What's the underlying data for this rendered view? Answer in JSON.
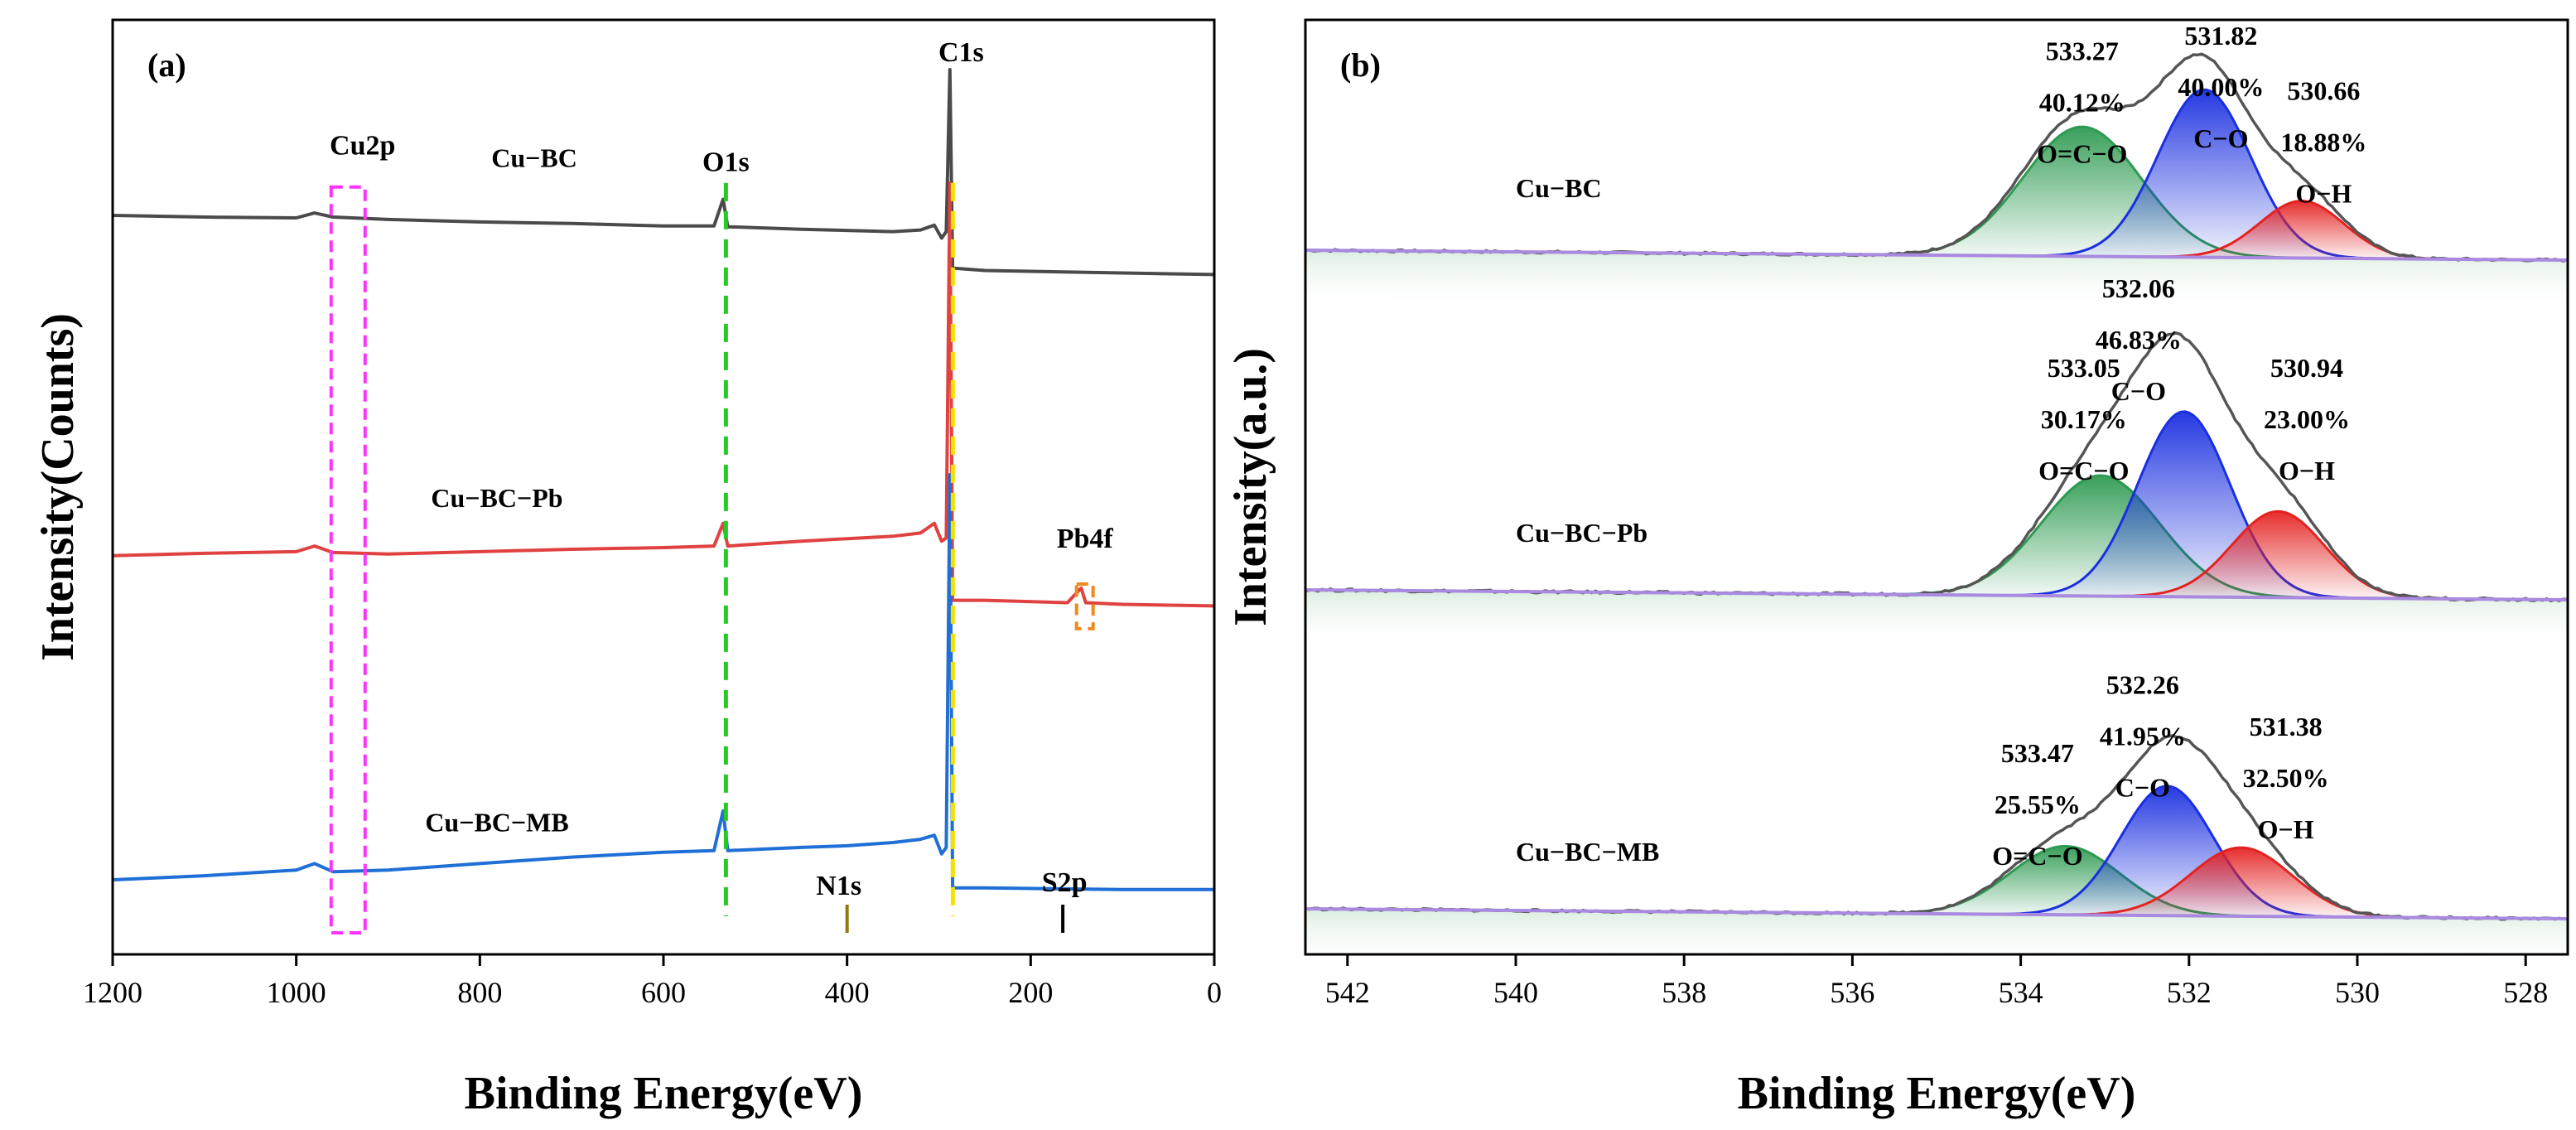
{
  "chart_data": [
    {
      "panel": "(a)",
      "type": "line",
      "xlabel": "Binding Energy(eV)",
      "ylabel": "Intensity(Counts)",
      "xlim": [
        1200,
        0
      ],
      "x_reversed": true,
      "xticks": [
        1200,
        1000,
        800,
        600,
        400,
        200,
        0
      ],
      "yticks_shown": false,
      "series": [
        {
          "name": "Cu-BC",
          "label": "Cu−BC",
          "color": "#4a4a4a",
          "offset": 0.82,
          "points": [
            [
              1200,
              0.0
            ],
            [
              1100,
              -0.002
            ],
            [
              1000,
              -0.003
            ],
            [
              980,
              0.003
            ],
            [
              960,
              -0.002
            ],
            [
              900,
              -0.005
            ],
            [
              800,
              -0.008
            ],
            [
              700,
              -0.01
            ],
            [
              600,
              -0.013
            ],
            [
              545,
              -0.013
            ],
            [
              535,
              0.02
            ],
            [
              530,
              -0.014
            ],
            [
              450,
              -0.017
            ],
            [
              350,
              -0.02
            ],
            [
              320,
              -0.018
            ],
            [
              305,
              -0.012
            ],
            [
              297,
              -0.028
            ],
            [
              292,
              -0.02
            ],
            [
              288,
              0.18
            ],
            [
              285,
              -0.065
            ],
            [
              250,
              -0.068
            ],
            [
              100,
              -0.071
            ],
            [
              0,
              -0.073
            ]
          ]
        },
        {
          "name": "Cu-BC-Pb",
          "label": "Cu−BC−Pb",
          "color": "#e04141",
          "offset": 0.4,
          "points": [
            [
              1200,
              0.0
            ],
            [
              1100,
              0.003
            ],
            [
              1000,
              0.005
            ],
            [
              980,
              0.012
            ],
            [
              960,
              0.004
            ],
            [
              900,
              0.002
            ],
            [
              800,
              0.005
            ],
            [
              700,
              0.008
            ],
            [
              600,
              0.01
            ],
            [
              545,
              0.012
            ],
            [
              535,
              0.04
            ],
            [
              530,
              0.012
            ],
            [
              450,
              0.018
            ],
            [
              350,
              0.024
            ],
            [
              320,
              0.028
            ],
            [
              305,
              0.04
            ],
            [
              297,
              0.018
            ],
            [
              292,
              0.022
            ],
            [
              288,
              0.46
            ],
            [
              285,
              -0.055
            ],
            [
              250,
              -0.055
            ],
            [
              160,
              -0.058
            ],
            [
              145,
              -0.04
            ],
            [
              140,
              -0.058
            ],
            [
              100,
              -0.06
            ],
            [
              0,
              -0.062
            ]
          ]
        },
        {
          "name": "Cu-BC-MB",
          "label": "Cu−BC−MB",
          "color": "#1f6fd6",
          "offset": 0.0,
          "points": [
            [
              1200,
              0.0
            ],
            [
              1100,
              0.005
            ],
            [
              1000,
              0.012
            ],
            [
              980,
              0.02
            ],
            [
              960,
              0.01
            ],
            [
              900,
              0.012
            ],
            [
              800,
              0.02
            ],
            [
              700,
              0.028
            ],
            [
              600,
              0.034
            ],
            [
              545,
              0.036
            ],
            [
              535,
              0.085
            ],
            [
              530,
              0.036
            ],
            [
              450,
              0.04
            ],
            [
              400,
              0.042
            ],
            [
              350,
              0.046
            ],
            [
              320,
              0.05
            ],
            [
              305,
              0.055
            ],
            [
              297,
              0.032
            ],
            [
              292,
              0.04
            ],
            [
              288,
              0.5
            ],
            [
              285,
              -0.01
            ],
            [
              250,
              -0.01
            ],
            [
              100,
              -0.012
            ],
            [
              0,
              -0.012
            ]
          ]
        }
      ],
      "reference_lines": [
        {
          "name": "O1s",
          "x": 532,
          "color": "#22cc22"
        },
        {
          "name": "C1s",
          "x": 284.8,
          "color": "#f2e200"
        }
      ],
      "markers": [
        {
          "name": "N1s",
          "x": 400,
          "color": "#8a7a10"
        },
        {
          "name": "S2p",
          "x": 165,
          "color": "#000000"
        }
      ],
      "boxes": [
        {
          "name": "Cu2p",
          "x_range": [
            962,
            925
          ],
          "color": "#ff33ff"
        },
        {
          "name": "Pb4f",
          "x_range": [
            150,
            132
          ],
          "color": "#f08a1c"
        }
      ],
      "peak_labels": [
        "Cu2p",
        "O1s",
        "C1s",
        "N1s",
        "Pb4f",
        "S2p"
      ]
    },
    {
      "panel": "(b)",
      "type": "area",
      "xlabel": "Binding Energy(eV)",
      "ylabel": "Intensity(a.u.)",
      "xlim": [
        542.5,
        527.5
      ],
      "x_reversed": true,
      "xticks": [
        542,
        540,
        538,
        536,
        534,
        532,
        530,
        528
      ],
      "yticks_shown": false,
      "component_colors": {
        "O=C−O": "#2e9a52",
        "C−O": "#1a2fe0",
        "O−H": "#e52222",
        "envelope": "#555555",
        "background": "#a98ae0"
      },
      "samples": [
        {
          "name": "Cu-BC",
          "label": "Cu−BC",
          "fit": [
            {
              "component": "O=C−O",
              "center": 533.27,
              "percent": 40.12,
              "height": 0.68,
              "sigma": 0.7
            },
            {
              "component": "C−O",
              "center": 531.82,
              "percent": 40.0,
              "height": 0.88,
              "sigma": 0.55
            },
            {
              "component": "O−H",
              "center": 530.66,
              "percent": 18.88,
              "height": 0.3,
              "sigma": 0.5
            }
          ],
          "annotations": [
            {
              "lines": [
                "533.27",
                "40.12%",
                "O=C−O"
              ]
            },
            {
              "lines": [
                "531.82",
                "40.00%",
                "C−O"
              ]
            },
            {
              "lines": [
                "530.66",
                "18.88%",
                "O−H"
              ]
            }
          ]
        },
        {
          "name": "Cu-BC-Pb",
          "label": "Cu−BC−Pb",
          "fit": [
            {
              "component": "O=C−O",
              "center": 533.05,
              "percent": 30.17,
              "height": 0.56,
              "sigma": 0.7
            },
            {
              "component": "C−O",
              "center": 532.06,
              "percent": 46.83,
              "height": 0.86,
              "sigma": 0.55
            },
            {
              "component": "O−H",
              "center": 530.94,
              "percent": 23.0,
              "height": 0.4,
              "sigma": 0.55
            }
          ],
          "annotations": [
            {
              "lines": [
                "532.06",
                "46.83%",
                "C−O"
              ]
            },
            {
              "lines": [
                "533.05",
                "30.17%",
                "O=C−O"
              ]
            },
            {
              "lines": [
                "530.94",
                "23.00%",
                "O−H"
              ]
            }
          ]
        },
        {
          "name": "Cu-BC-MB",
          "label": "Cu−BC−MB",
          "fit": [
            {
              "component": "O=C−O",
              "center": 533.47,
              "percent": 25.55,
              "height": 0.36,
              "sigma": 0.65
            },
            {
              "component": "C−O",
              "center": 532.26,
              "percent": 41.95,
              "height": 0.68,
              "sigma": 0.55
            },
            {
              "component": "O−H",
              "center": 531.38,
              "percent": 32.5,
              "height": 0.36,
              "sigma": 0.6
            }
          ],
          "annotations": [
            {
              "lines": [
                "532.26",
                "41.95%",
                "C−O"
              ]
            },
            {
              "lines": [
                "533.47",
                "25.55%",
                "O=C−O"
              ]
            },
            {
              "lines": [
                "531.38",
                "32.50%",
                "O−H"
              ]
            }
          ]
        }
      ]
    }
  ]
}
